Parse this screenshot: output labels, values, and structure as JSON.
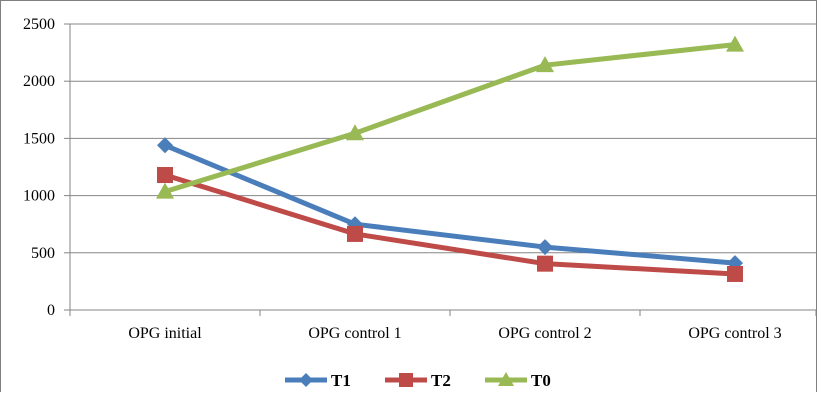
{
  "chart_data": {
    "type": "line",
    "title": "",
    "xlabel": "",
    "ylabel": "",
    "categories": [
      "OPG initial",
      "OPG control 1",
      "OPG control 2",
      "OPG control 3"
    ],
    "ylim": [
      0,
      2500
    ],
    "yticks": [
      0,
      500,
      1000,
      1500,
      2000,
      2500
    ],
    "grid": "horizontal",
    "legend": "bottom",
    "series": [
      {
        "name": "T1",
        "color": "#4a7ebb",
        "marker": "diamond",
        "values": [
          1440,
          750,
          550,
          410
        ]
      },
      {
        "name": "T2",
        "color": "#be4b48",
        "marker": "square",
        "values": [
          1180,
          665,
          405,
          315
        ]
      },
      {
        "name": "T0",
        "color": "#98b954",
        "marker": "triangle",
        "values": [
          1035,
          1545,
          2140,
          2320
        ]
      }
    ]
  }
}
